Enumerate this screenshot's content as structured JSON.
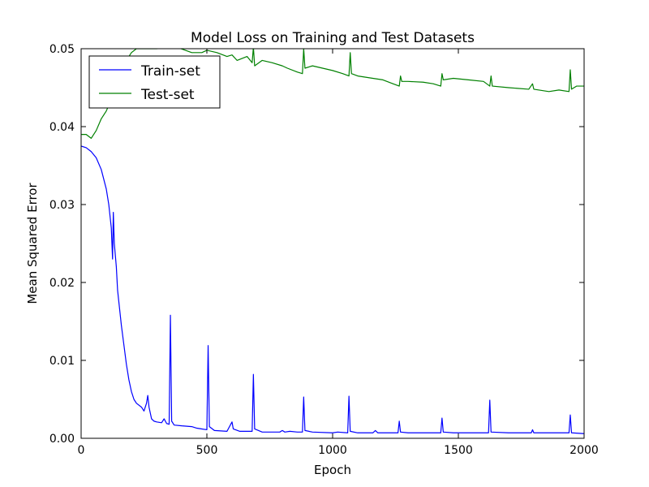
{
  "chart_data": {
    "type": "line",
    "title": "Model Loss on Training and Test Datasets",
    "xlabel": "Epoch",
    "ylabel": "Mean Squared Error",
    "xlim": [
      0,
      2000
    ],
    "ylim": [
      0,
      0.05
    ],
    "x_ticks": [
      "0",
      "500",
      "1000",
      "1500",
      "2000"
    ],
    "y_ticks": [
      "0.00",
      "0.01",
      "0.02",
      "0.03",
      "0.04",
      "0.05"
    ],
    "grid": false,
    "legend_position": "top-left",
    "series": [
      {
        "name": "Train-set",
        "color": "#0000ff",
        "points": [
          [
            0,
            0.0375
          ],
          [
            20,
            0.0373
          ],
          [
            40,
            0.0368
          ],
          [
            60,
            0.036
          ],
          [
            80,
            0.0345
          ],
          [
            100,
            0.032
          ],
          [
            110,
            0.03
          ],
          [
            120,
            0.027
          ],
          [
            125,
            0.023
          ],
          [
            128,
            0.029
          ],
          [
            132,
            0.025
          ],
          [
            140,
            0.022
          ],
          [
            145,
            0.019
          ],
          [
            150,
            0.0175
          ],
          [
            160,
            0.0145
          ],
          [
            170,
            0.012
          ],
          [
            180,
            0.0095
          ],
          [
            190,
            0.0075
          ],
          [
            200,
            0.006
          ],
          [
            210,
            0.005
          ],
          [
            220,
            0.0045
          ],
          [
            240,
            0.004
          ],
          [
            250,
            0.0035
          ],
          [
            260,
            0.0045
          ],
          [
            265,
            0.0055
          ],
          [
            270,
            0.004
          ],
          [
            280,
            0.0025
          ],
          [
            290,
            0.0022
          ],
          [
            300,
            0.0021
          ],
          [
            320,
            0.002
          ],
          [
            330,
            0.0025
          ],
          [
            340,
            0.0019
          ],
          [
            350,
            0.0018
          ],
          [
            355,
            0.0158
          ],
          [
            360,
            0.0022
          ],
          [
            370,
            0.0017
          ],
          [
            400,
            0.0016
          ],
          [
            440,
            0.0015
          ],
          [
            460,
            0.0013
          ],
          [
            480,
            0.0012
          ],
          [
            500,
            0.0011
          ],
          [
            505,
            0.0119
          ],
          [
            510,
            0.0015
          ],
          [
            530,
            0.001
          ],
          [
            580,
            0.0009
          ],
          [
            600,
            0.0021
          ],
          [
            605,
            0.0012
          ],
          [
            630,
            0.0009
          ],
          [
            660,
            0.0009
          ],
          [
            680,
            0.0009
          ],
          [
            685,
            0.0082
          ],
          [
            690,
            0.0012
          ],
          [
            720,
            0.0008
          ],
          [
            790,
            0.0008
          ],
          [
            800,
            0.001
          ],
          [
            810,
            0.0008
          ],
          [
            830,
            0.0009
          ],
          [
            860,
            0.0008
          ],
          [
            880,
            0.0008
          ],
          [
            885,
            0.0053
          ],
          [
            890,
            0.001
          ],
          [
            920,
            0.0008
          ],
          [
            1000,
            0.0007
          ],
          [
            1020,
            0.0008
          ],
          [
            1060,
            0.0007
          ],
          [
            1065,
            0.0054
          ],
          [
            1070,
            0.0009
          ],
          [
            1100,
            0.0007
          ],
          [
            1160,
            0.0007
          ],
          [
            1170,
            0.001
          ],
          [
            1180,
            0.0007
          ],
          [
            1260,
            0.0007
          ],
          [
            1265,
            0.0022
          ],
          [
            1270,
            0.0008
          ],
          [
            1300,
            0.0007
          ],
          [
            1430,
            0.0007
          ],
          [
            1435,
            0.0026
          ],
          [
            1440,
            0.0008
          ],
          [
            1480,
            0.0007
          ],
          [
            1620,
            0.0007
          ],
          [
            1625,
            0.0049
          ],
          [
            1630,
            0.0008
          ],
          [
            1700,
            0.0007
          ],
          [
            1790,
            0.0007
          ],
          [
            1795,
            0.0011
          ],
          [
            1800,
            0.0007
          ],
          [
            1940,
            0.0007
          ],
          [
            1945,
            0.003
          ],
          [
            1950,
            0.0007
          ],
          [
            2000,
            0.0006
          ]
        ]
      },
      {
        "name": "Test-set",
        "color": "#008000",
        "points": [
          [
            0,
            0.039
          ],
          [
            20,
            0.039
          ],
          [
            40,
            0.0385
          ],
          [
            60,
            0.0395
          ],
          [
            80,
            0.041
          ],
          [
            100,
            0.042
          ],
          [
            120,
            0.0435
          ],
          [
            140,
            0.045
          ],
          [
            160,
            0.047
          ],
          [
            180,
            0.0485
          ],
          [
            200,
            0.0495
          ],
          [
            220,
            0.05
          ],
          [
            300,
            0.05
          ],
          [
            380,
            0.0502
          ],
          [
            440,
            0.0495
          ],
          [
            480,
            0.0495
          ],
          [
            500,
            0.0498
          ],
          [
            540,
            0.0495
          ],
          [
            580,
            0.049
          ],
          [
            600,
            0.0492
          ],
          [
            620,
            0.0485
          ],
          [
            660,
            0.049
          ],
          [
            680,
            0.0482
          ],
          [
            685,
            0.0502
          ],
          [
            690,
            0.0478
          ],
          [
            720,
            0.0485
          ],
          [
            760,
            0.0482
          ],
          [
            800,
            0.0478
          ],
          [
            820,
            0.0475
          ],
          [
            860,
            0.047
          ],
          [
            880,
            0.0468
          ],
          [
            885,
            0.05
          ],
          [
            890,
            0.0475
          ],
          [
            920,
            0.0478
          ],
          [
            960,
            0.0475
          ],
          [
            1000,
            0.0472
          ],
          [
            1040,
            0.0468
          ],
          [
            1065,
            0.0465
          ],
          [
            1070,
            0.0495
          ],
          [
            1075,
            0.0468
          ],
          [
            1100,
            0.0465
          ],
          [
            1160,
            0.0462
          ],
          [
            1200,
            0.046
          ],
          [
            1240,
            0.0455
          ],
          [
            1265,
            0.0452
          ],
          [
            1270,
            0.0465
          ],
          [
            1275,
            0.0458
          ],
          [
            1300,
            0.0458
          ],
          [
            1360,
            0.0457
          ],
          [
            1400,
            0.0455
          ],
          [
            1430,
            0.0452
          ],
          [
            1435,
            0.0468
          ],
          [
            1440,
            0.046
          ],
          [
            1480,
            0.0462
          ],
          [
            1540,
            0.046
          ],
          [
            1600,
            0.0458
          ],
          [
            1625,
            0.0452
          ],
          [
            1630,
            0.0465
          ],
          [
            1635,
            0.0452
          ],
          [
            1700,
            0.045
          ],
          [
            1780,
            0.0448
          ],
          [
            1795,
            0.0455
          ],
          [
            1800,
            0.0448
          ],
          [
            1860,
            0.0445
          ],
          [
            1900,
            0.0447
          ],
          [
            1940,
            0.0445
          ],
          [
            1945,
            0.0473
          ],
          [
            1950,
            0.0448
          ],
          [
            1970,
            0.0452
          ],
          [
            2000,
            0.0452
          ]
        ]
      }
    ]
  }
}
